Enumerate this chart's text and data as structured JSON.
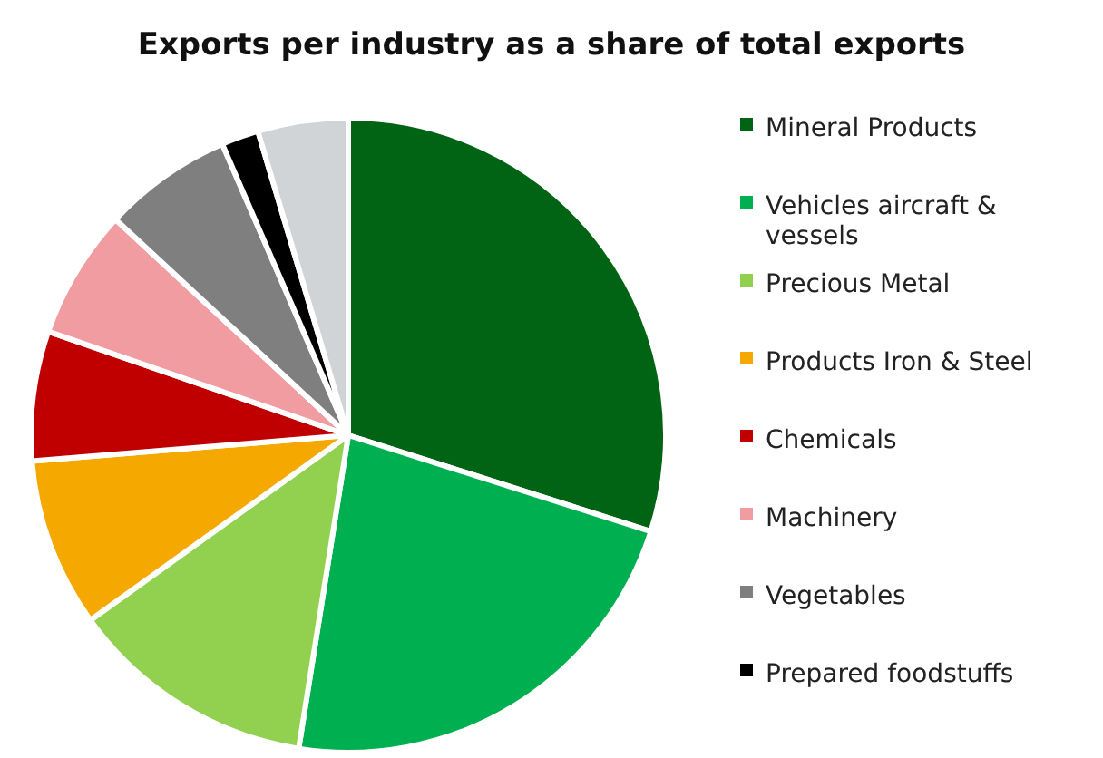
{
  "chart_data": {
    "type": "pie",
    "title": "Exports per industry as a share of total exports",
    "categories": [
      "Mineral Products",
      "Vehicles aircraft & vessels",
      "Precious Metal",
      "Products Iron & Steel",
      "Chemicals",
      "Machinery",
      "Vegetables",
      "Prepared foodstuffs",
      null
    ],
    "values": [
      29.9,
      22.6,
      12.6,
      8.6,
      6.6,
      6.6,
      6.6,
      1.9,
      4.6
    ],
    "colors": [
      "#006414",
      "#00b050",
      "#92d050",
      "#f5a800",
      "#c00000",
      "#f09ca0",
      "#7f7f7f",
      "#000000",
      "#d0d4d6"
    ],
    "legend": "right"
  }
}
